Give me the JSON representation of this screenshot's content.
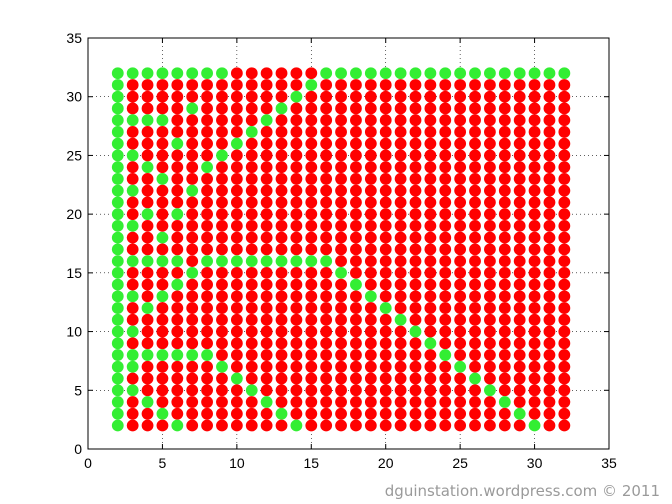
{
  "chart_data": {
    "type": "scatter",
    "xlim": [
      0,
      35
    ],
    "ylim": [
      0,
      35
    ],
    "xticks": [
      "0",
      "5",
      "10",
      "15",
      "20",
      "25",
      "30",
      "35"
    ],
    "yticks": [
      "0",
      "5",
      "10",
      "15",
      "20",
      "25",
      "30",
      "35"
    ],
    "grid": true,
    "grid_points": {
      "x_from": 2,
      "x_to": 32,
      "y_from": 2,
      "y_to": 32,
      "step": 1
    },
    "default_color": "#ff0000",
    "green_color": "#33ee33",
    "green_points": [
      [
        2,
        32
      ],
      [
        3,
        32
      ],
      [
        4,
        32
      ],
      [
        5,
        32
      ],
      [
        6,
        32
      ],
      [
        7,
        32
      ],
      [
        8,
        32
      ],
      [
        9,
        32
      ],
      [
        16,
        32
      ],
      [
        17,
        32
      ],
      [
        18,
        32
      ],
      [
        19,
        32
      ],
      [
        20,
        32
      ],
      [
        21,
        32
      ],
      [
        22,
        32
      ],
      [
        23,
        32
      ],
      [
        24,
        32
      ],
      [
        25,
        32
      ],
      [
        26,
        32
      ],
      [
        27,
        32
      ],
      [
        28,
        32
      ],
      [
        29,
        32
      ],
      [
        30,
        32
      ],
      [
        31,
        32
      ],
      [
        32,
        32
      ],
      [
        2,
        31
      ],
      [
        15,
        31
      ],
      [
        2,
        30
      ],
      [
        14,
        30
      ],
      [
        2,
        29
      ],
      [
        7,
        29
      ],
      [
        13,
        29
      ],
      [
        2,
        28
      ],
      [
        3,
        28
      ],
      [
        4,
        28
      ],
      [
        5,
        28
      ],
      [
        12,
        28
      ],
      [
        2,
        27
      ],
      [
        11,
        27
      ],
      [
        2,
        26
      ],
      [
        6,
        26
      ],
      [
        10,
        26
      ],
      [
        2,
        25
      ],
      [
        3,
        25
      ],
      [
        9,
        25
      ],
      [
        2,
        24
      ],
      [
        4,
        24
      ],
      [
        8,
        24
      ],
      [
        2,
        23
      ],
      [
        5,
        23
      ],
      [
        2,
        22
      ],
      [
        3,
        22
      ],
      [
        7,
        22
      ],
      [
        2,
        21
      ],
      [
        2,
        20
      ],
      [
        4,
        20
      ],
      [
        6,
        20
      ],
      [
        2,
        19
      ],
      [
        3,
        19
      ],
      [
        2,
        18
      ],
      [
        5,
        18
      ],
      [
        2,
        17
      ],
      [
        2,
        16
      ],
      [
        3,
        16
      ],
      [
        4,
        16
      ],
      [
        5,
        16
      ],
      [
        6,
        16
      ],
      [
        8,
        16
      ],
      [
        9,
        16
      ],
      [
        10,
        16
      ],
      [
        11,
        16
      ],
      [
        12,
        16
      ],
      [
        13,
        16
      ],
      [
        14,
        16
      ],
      [
        15,
        16
      ],
      [
        16,
        16
      ],
      [
        2,
        15
      ],
      [
        7,
        15
      ],
      [
        17,
        15
      ],
      [
        2,
        14
      ],
      [
        6,
        14
      ],
      [
        18,
        14
      ],
      [
        2,
        13
      ],
      [
        3,
        13
      ],
      [
        5,
        13
      ],
      [
        19,
        13
      ],
      [
        2,
        12
      ],
      [
        4,
        12
      ],
      [
        20,
        12
      ],
      [
        2,
        11
      ],
      [
        21,
        11
      ],
      [
        2,
        10
      ],
      [
        3,
        10
      ],
      [
        22,
        10
      ],
      [
        2,
        9
      ],
      [
        23,
        9
      ],
      [
        2,
        8
      ],
      [
        3,
        8
      ],
      [
        4,
        8
      ],
      [
        5,
        8
      ],
      [
        6,
        8
      ],
      [
        7,
        8
      ],
      [
        8,
        8
      ],
      [
        24,
        8
      ],
      [
        2,
        7
      ],
      [
        3,
        7
      ],
      [
        9,
        7
      ],
      [
        25,
        7
      ],
      [
        2,
        6
      ],
      [
        10,
        6
      ],
      [
        26,
        6
      ],
      [
        2,
        5
      ],
      [
        3,
        5
      ],
      [
        11,
        5
      ],
      [
        27,
        5
      ],
      [
        2,
        4
      ],
      [
        4,
        4
      ],
      [
        12,
        4
      ],
      [
        28,
        4
      ],
      [
        2,
        3
      ],
      [
        5,
        3
      ],
      [
        13,
        3
      ],
      [
        29,
        3
      ],
      [
        2,
        2
      ],
      [
        6,
        2
      ],
      [
        14,
        2
      ],
      [
        30,
        2
      ]
    ]
  },
  "watermark": "dguinstation.wordpress.com © 2011"
}
